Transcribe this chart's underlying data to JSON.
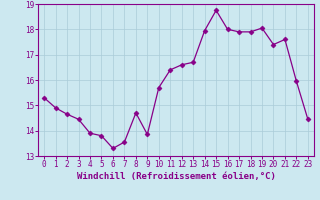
{
  "x": [
    0,
    1,
    2,
    3,
    4,
    5,
    6,
    7,
    8,
    9,
    10,
    11,
    12,
    13,
    14,
    15,
    16,
    17,
    18,
    19,
    20,
    21,
    22,
    23
  ],
  "y": [
    15.3,
    14.9,
    14.65,
    14.45,
    13.9,
    13.8,
    13.3,
    13.55,
    14.7,
    13.85,
    15.7,
    16.4,
    16.6,
    16.7,
    17.95,
    18.75,
    18.0,
    17.9,
    17.9,
    18.05,
    17.4,
    17.6,
    15.95,
    14.45
  ],
  "line_color": "#880088",
  "marker": "D",
  "marker_size": 2.5,
  "bg_color": "#cce8f0",
  "grid_color": "#aaccd8",
  "xlabel": "Windchill (Refroidissement éolien,°C)",
  "ylim": [
    13,
    19
  ],
  "xlim": [
    -0.5,
    23.5
  ],
  "yticks": [
    13,
    14,
    15,
    16,
    17,
    18,
    19
  ],
  "xticks": [
    0,
    1,
    2,
    3,
    4,
    5,
    6,
    7,
    8,
    9,
    10,
    11,
    12,
    13,
    14,
    15,
    16,
    17,
    18,
    19,
    20,
    21,
    22,
    23
  ],
  "tick_label_size": 5.5,
  "xlabel_size": 6.5,
  "spine_color": "#880088",
  "linewidth": 0.9
}
